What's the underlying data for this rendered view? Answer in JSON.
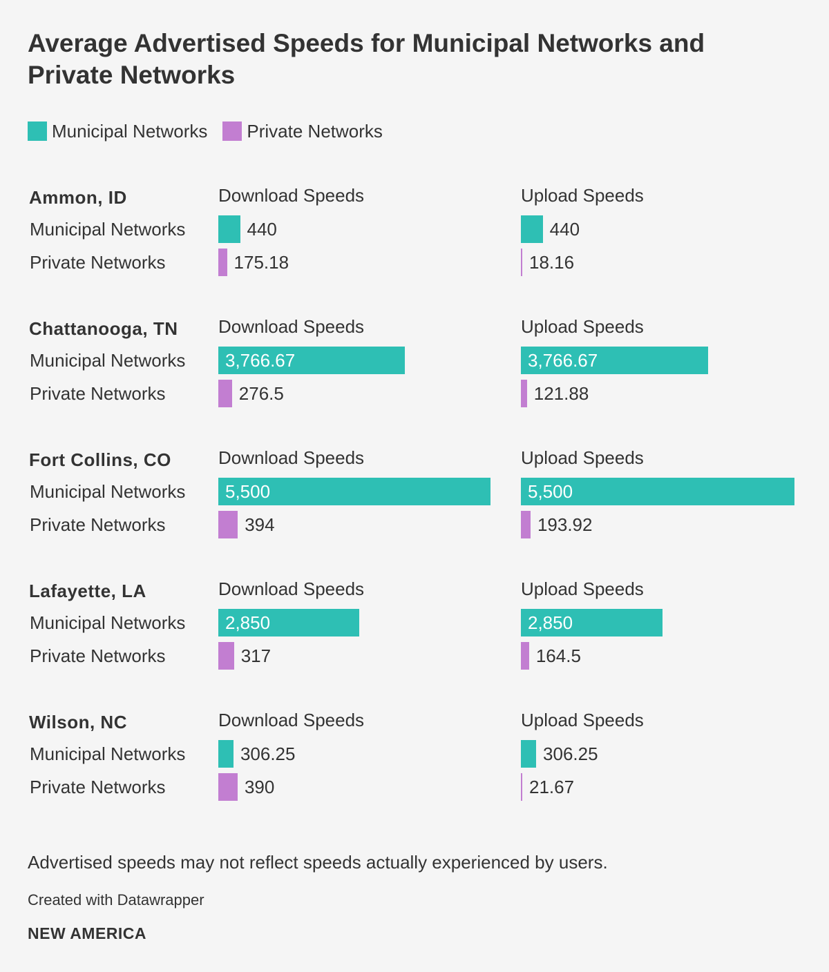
{
  "title": "Average Advertised Speeds for Municipal Networks and Private Networks",
  "colors": {
    "municipal": "#2ebfb4",
    "private": "#c27ed1"
  },
  "legend": [
    {
      "label": "Municipal Networks",
      "color": "#2ebfb4"
    },
    {
      "label": "Private Networks",
      "color": "#c27ed1"
    }
  ],
  "chart_data": {
    "type": "bar",
    "orientation": "horizontal",
    "title": "Average Advertised Speeds for Municipal Networks and Private Networks",
    "columns": [
      "Download Speeds",
      "Upload Speeds"
    ],
    "series_names": [
      "Municipal Networks",
      "Private Networks"
    ],
    "xlim": [
      0,
      5500
    ],
    "panels": [
      {
        "city": "Ammon, ID",
        "download": [
          440,
          175.18
        ],
        "upload": [
          440,
          18.16
        ],
        "download_labels": [
          "440",
          "175.18"
        ],
        "upload_labels": [
          "440",
          "18.16"
        ]
      },
      {
        "city": "Chattanooga, TN",
        "download": [
          3766.67,
          276.5
        ],
        "upload": [
          3766.67,
          121.88
        ],
        "download_labels": [
          "3,766.67",
          "276.5"
        ],
        "upload_labels": [
          "3,766.67",
          "121.88"
        ]
      },
      {
        "city": "Fort Collins, CO",
        "download": [
          5500,
          394
        ],
        "upload": [
          5500,
          193.92
        ],
        "download_labels": [
          "5,500",
          "394"
        ],
        "upload_labels": [
          "5,500",
          "193.92"
        ]
      },
      {
        "city": "Lafayette, LA",
        "download": [
          2850,
          317
        ],
        "upload": [
          2850,
          164.5
        ],
        "download_labels": [
          "2,850",
          "317"
        ],
        "upload_labels": [
          "2,850",
          "164.5"
        ]
      },
      {
        "city": "Wilson, NC",
        "download": [
          306.25,
          390
        ],
        "upload": [
          306.25,
          21.67
        ],
        "download_labels": [
          "306.25",
          "390"
        ],
        "upload_labels": [
          "306.25",
          "21.67"
        ]
      }
    ]
  },
  "footer": {
    "note": "Advertised speeds may not reflect speeds actually experienced by users.",
    "credit": "Created with Datawrapper",
    "brand": "NEW AMERICA"
  }
}
